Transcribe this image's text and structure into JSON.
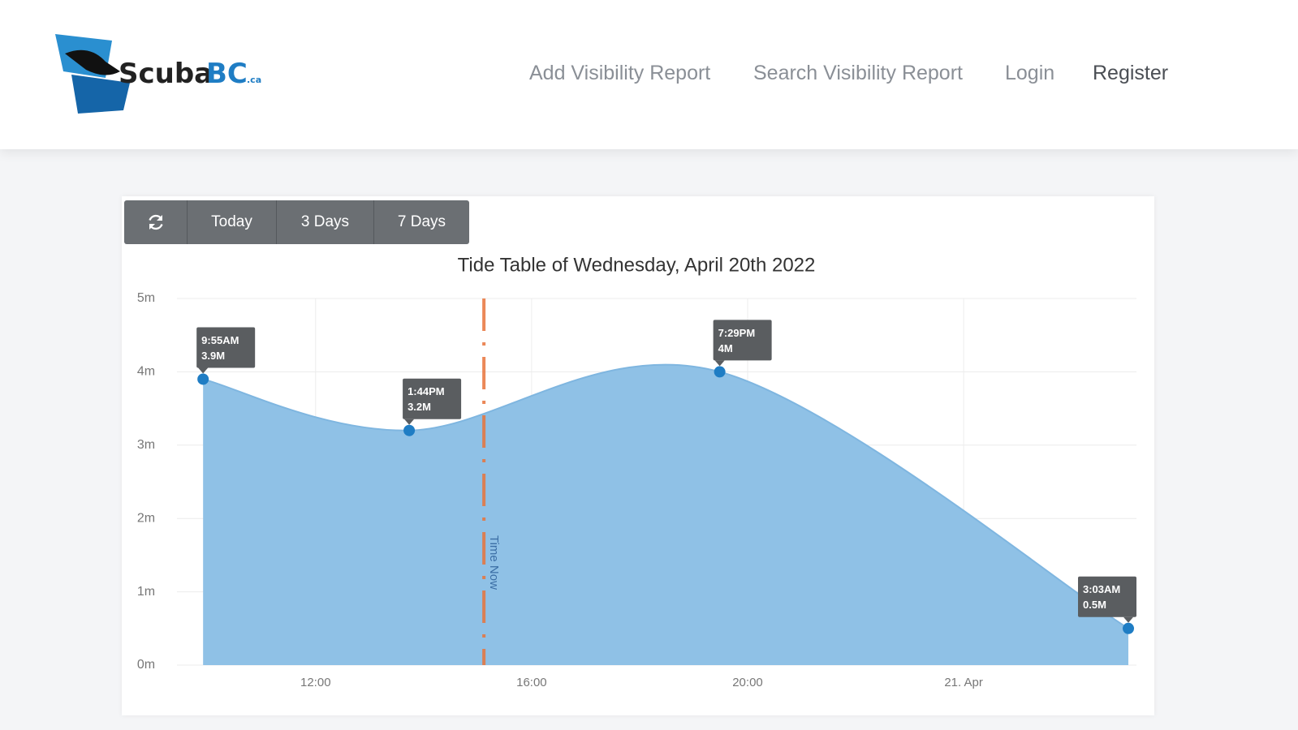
{
  "header": {
    "logo": {
      "name": "Scuba",
      "accent": "BC",
      "suffix": ".ca"
    },
    "nav": [
      "Add Visibility Report",
      "Search Visibility Report",
      "Login",
      "Register"
    ]
  },
  "toolbar": {
    "buttons": [
      "Today",
      "3 Days",
      "7 Days"
    ]
  },
  "chart_data": {
    "type": "areaspline",
    "title": "Tide Table of Wednesday, April 20th 2022",
    "x": [
      "2022-04-20T09:55",
      "2022-04-20T13:44",
      "2022-04-20T19:29",
      "2022-04-21T03:03"
    ],
    "series": [
      {
        "name": "Tide",
        "color": "#8fc1e6",
        "point_color": "#1f7dc4",
        "values": [
          3.9,
          3.2,
          4,
          0.5
        ],
        "time_labels": [
          "9:55AM",
          "1:44PM",
          "7:29PM",
          "3:03AM"
        ],
        "value_labels": [
          "3.9M",
          "3.2M",
          "4M",
          "0.5M"
        ]
      }
    ],
    "xlim": [
      "2022-04-20T09:35",
      "2022-04-21T03:12"
    ],
    "xticks": [
      {
        "value": "2022-04-20T12:00",
        "label": "12:00"
      },
      {
        "value": "2022-04-20T16:00",
        "label": "16:00"
      },
      {
        "value": "2022-04-20T20:00",
        "label": "20:00"
      },
      {
        "value": "2022-04-21T00:00",
        "label": "21. Apr"
      }
    ],
    "ylim": [
      0,
      5
    ],
    "yticks": [
      {
        "value": 0,
        "label": "0m"
      },
      {
        "value": 1,
        "label": "1m"
      },
      {
        "value": 2,
        "label": "2m"
      },
      {
        "value": 3,
        "label": "3m"
      },
      {
        "value": 4,
        "label": "4m"
      },
      {
        "value": 5,
        "label": "5m"
      }
    ],
    "grid": true,
    "plot_lines": [
      {
        "value": "2022-04-20T15:07",
        "label": "Time Now",
        "color": "#e8743b"
      }
    ]
  }
}
